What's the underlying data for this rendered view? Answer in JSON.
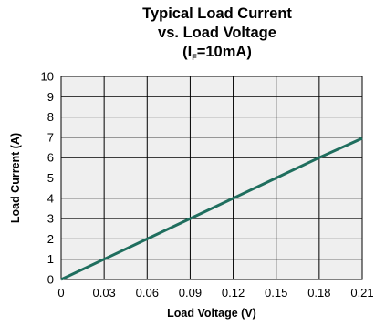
{
  "chart_data": {
    "type": "line",
    "title_line1": "Typical Load Current",
    "title_line2": "vs. Load Voltage",
    "title_line3_prefix": "(I",
    "title_line3_subscript": "F",
    "title_line3_suffix": "=10mA)",
    "xlabel": "Load Voltage (V)",
    "ylabel": "Load Current (A)",
    "xlim": [
      0,
      0.21
    ],
    "ylim": [
      0,
      10
    ],
    "x_ticks": [
      "0",
      "0.03",
      "0.06",
      "0.09",
      "0.12",
      "0.15",
      "0.18",
      "0.21"
    ],
    "y_ticks": [
      "0",
      "1",
      "2",
      "3",
      "4",
      "5",
      "6",
      "7",
      "8",
      "9",
      "10"
    ],
    "grid": true,
    "series": [
      {
        "x": [
          0,
          0.03,
          0.06,
          0.09,
          0.12,
          0.15,
          0.18,
          0.21
        ],
        "y": [
          0,
          1,
          2,
          3,
          4,
          5,
          6,
          6.95
        ],
        "color": "#1f6e5e"
      }
    ],
    "colors": {
      "plot_background": "#efefef",
      "grid": "#000000",
      "line": "#1f6e5e"
    }
  }
}
